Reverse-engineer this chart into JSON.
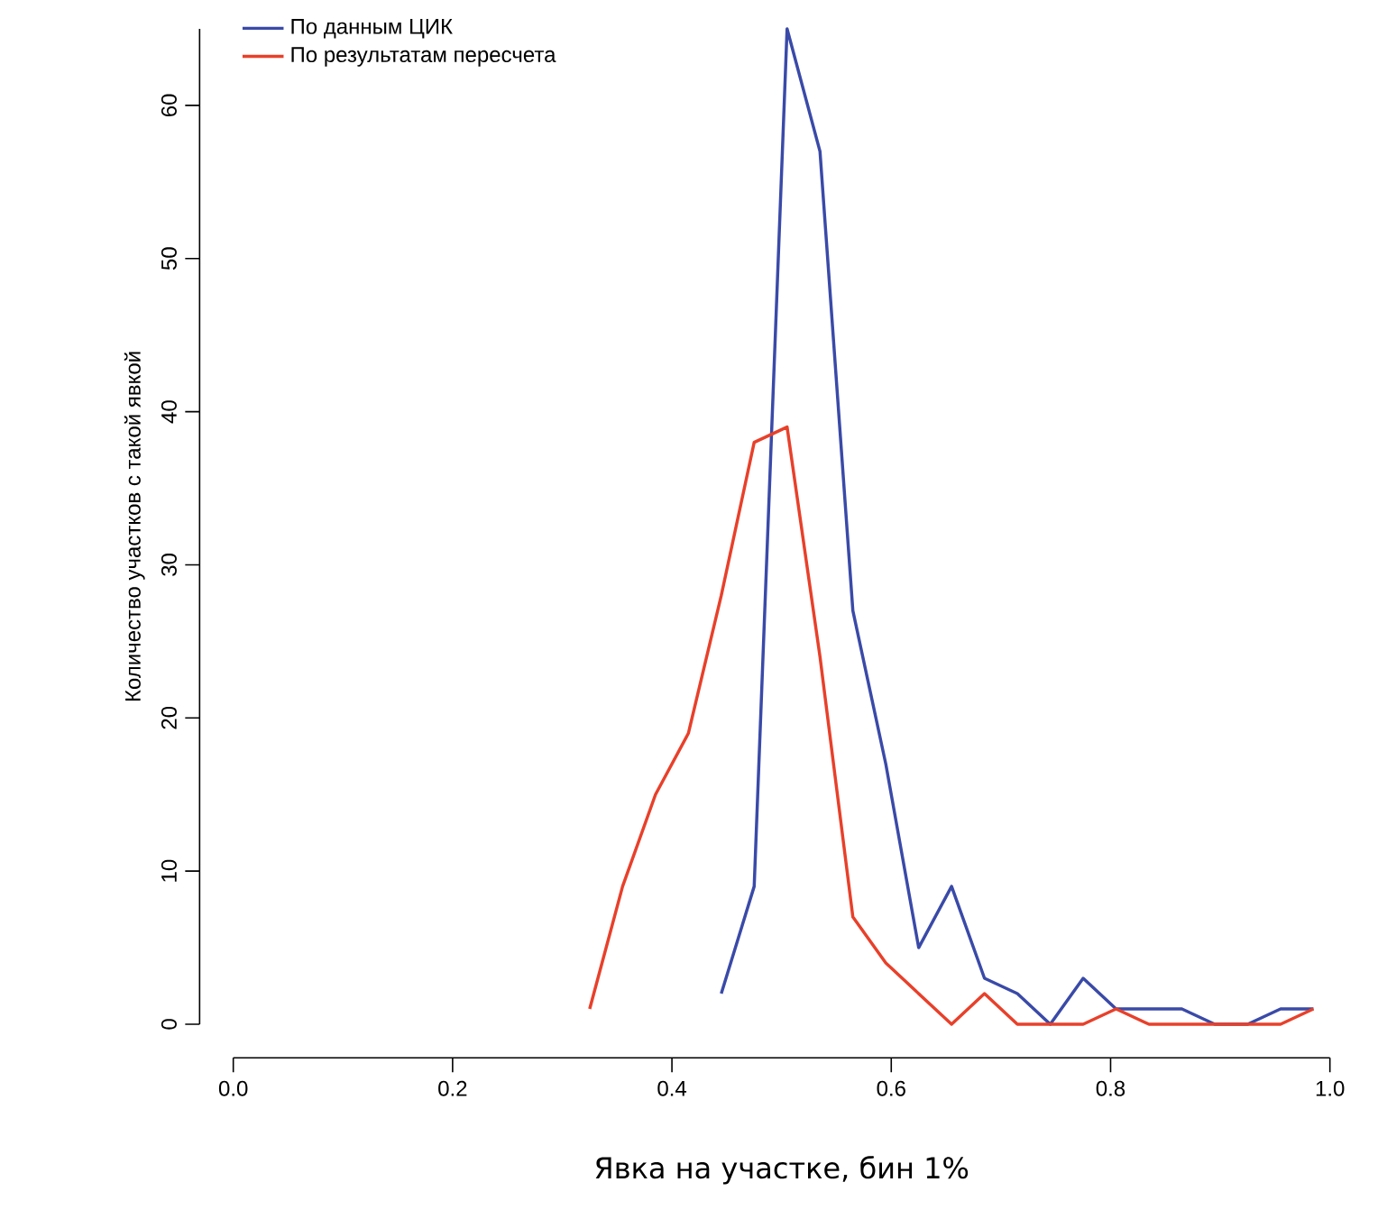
{
  "chart_data": {
    "type": "line",
    "xlabel": "Явка на участке, бин 1%",
    "ylabel": "Количество участков с такой явкой",
    "x": [
      0.325,
      0.355,
      0.385,
      0.415,
      0.445,
      0.475,
      0.505,
      0.535,
      0.565,
      0.595,
      0.625,
      0.655,
      0.685,
      0.715,
      0.745,
      0.775,
      0.805,
      0.835,
      0.865,
      0.895,
      0.925,
      0.955,
      0.985
    ],
    "series": [
      {
        "name": "По данным ЦИК",
        "color": "#3a4aa8",
        "values": [
          null,
          null,
          null,
          null,
          2,
          9,
          65,
          57,
          27,
          17,
          5,
          9,
          3,
          2,
          0,
          3,
          1,
          1,
          1,
          0,
          0,
          1,
          1
        ]
      },
      {
        "name": "По результатам пересчета",
        "color": "#e8402a",
        "values": [
          1,
          9,
          15,
          19,
          28,
          38,
          39,
          24,
          7,
          4,
          2,
          0,
          2,
          0,
          0,
          0,
          1,
          0,
          0,
          0,
          0,
          0,
          1
        ]
      }
    ],
    "xlim": [
      0,
      1
    ],
    "ylim": [
      0,
      65
    ],
    "xticks": [
      {
        "value": 0,
        "label": "0.0"
      },
      0.2,
      0.4,
      0.6,
      0.8,
      {
        "value": 1,
        "label": "1.0"
      }
    ],
    "yticks": [
      0,
      10,
      20,
      30,
      40,
      50,
      60
    ],
    "grid": false,
    "legend": "top left",
    "marker": "none",
    "line_style": "solid"
  }
}
